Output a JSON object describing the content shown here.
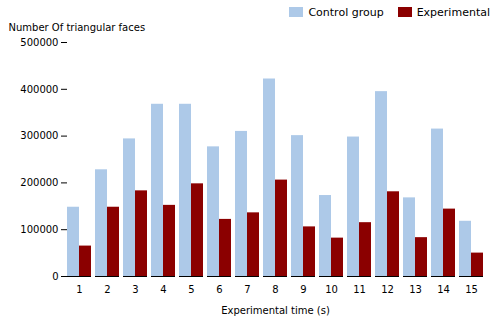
{
  "chart_data": {
    "type": "bar",
    "categories": [
      1,
      2,
      3,
      4,
      5,
      6,
      7,
      8,
      9,
      10,
      11,
      12,
      13,
      14,
      15
    ],
    "series": [
      {
        "name": "Control group",
        "color": "#adc9e8",
        "values": [
          148000,
          228000,
          294000,
          368000,
          368000,
          277000,
          310000,
          422000,
          301000,
          173000,
          298000,
          395000,
          168000,
          315000,
          118000
        ]
      },
      {
        "name": "Experimental",
        "color": "#8b0000",
        "values": [
          65000,
          148000,
          183000,
          152000,
          198000,
          122000,
          136000,
          206000,
          106000,
          82000,
          115000,
          181000,
          83000,
          144000,
          50000
        ]
      }
    ],
    "xlabel": "Experimental time (s)",
    "ylabel": "Number Of triangular faces",
    "ylim": [
      0,
      500000
    ],
    "yticks": [
      0,
      100000,
      200000,
      300000,
      400000,
      500000
    ],
    "legend": "upper right",
    "grid": false
  }
}
